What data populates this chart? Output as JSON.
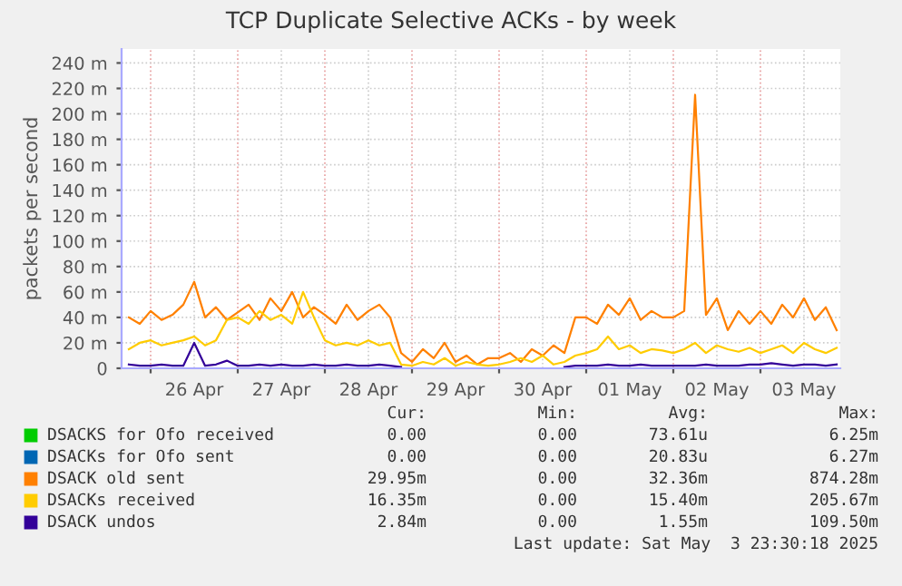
{
  "chart_data": {
    "type": "line",
    "title": "TCP Duplicate Selective ACKs - by week",
    "ylabel": "packets per second",
    "x": [
      "2025-04-25T18:00",
      "2025-04-25T21:00",
      "2025-04-26T00:00",
      "2025-04-26T03:00",
      "2025-04-26T06:00",
      "2025-04-26T09:00",
      "2025-04-26T12:00",
      "2025-04-26T15:00",
      "2025-04-26T18:00",
      "2025-04-26T21:00",
      "2025-04-27T00:00",
      "2025-04-27T03:00",
      "2025-04-27T06:00",
      "2025-04-27T09:00",
      "2025-04-27T12:00",
      "2025-04-27T15:00",
      "2025-04-27T18:00",
      "2025-04-27T21:00",
      "2025-04-28T00:00",
      "2025-04-28T03:00",
      "2025-04-28T06:00",
      "2025-04-28T09:00",
      "2025-04-28T12:00",
      "2025-04-28T15:00",
      "2025-04-28T18:00",
      "2025-04-28T21:00",
      "2025-04-29T00:00",
      "2025-04-29T03:00",
      "2025-04-29T06:00",
      "2025-04-29T09:00",
      "2025-04-29T12:00",
      "2025-04-29T15:00",
      "2025-04-29T18:00",
      "2025-04-29T21:00",
      "2025-04-30T00:00",
      "2025-04-30T03:00",
      "2025-04-30T06:00",
      "2025-04-30T09:00",
      "2025-04-30T12:00",
      "2025-04-30T15:00",
      "2025-04-30T18:00",
      "2025-04-30T21:00",
      "2025-05-01T00:00",
      "2025-05-01T03:00",
      "2025-05-01T06:00",
      "2025-05-01T09:00",
      "2025-05-01T12:00",
      "2025-05-01T15:00",
      "2025-05-01T18:00",
      "2025-05-01T21:00",
      "2025-05-02T00:00",
      "2025-05-02T03:00",
      "2025-05-02T06:00",
      "2025-05-02T09:00",
      "2025-05-02T12:00",
      "2025-05-02T15:00",
      "2025-05-02T18:00",
      "2025-05-02T21:00",
      "2025-05-03T00:00",
      "2025-05-03T03:00",
      "2025-05-03T06:00",
      "2025-05-03T09:00",
      "2025-05-03T12:00",
      "2025-05-03T15:00",
      "2025-05-03T18:00",
      "2025-05-03T21:00"
    ],
    "series": [
      {
        "name": "DSACKS for Ofo received",
        "color": "#00cc00",
        "values": [
          null,
          null,
          null,
          null,
          null,
          null,
          null,
          null,
          null,
          null,
          null,
          null,
          null,
          null,
          null,
          null,
          null,
          null,
          null,
          null,
          null,
          null,
          null,
          null,
          null,
          null,
          null,
          null,
          null,
          null,
          null,
          null,
          null,
          null,
          null,
          null,
          null,
          null,
          null,
          null,
          null,
          null,
          null,
          null,
          null,
          null,
          null,
          null,
          null,
          null,
          null,
          null,
          null,
          null,
          null,
          null,
          null,
          null,
          null,
          null,
          null,
          null,
          null,
          null,
          null,
          null
        ]
      },
      {
        "name": "DSACKs for Ofo sent",
        "color": "#0066b3",
        "values": [
          null,
          null,
          null,
          null,
          null,
          null,
          null,
          null,
          null,
          null,
          null,
          null,
          null,
          null,
          null,
          null,
          null,
          null,
          null,
          null,
          null,
          null,
          null,
          null,
          null,
          null,
          null,
          null,
          null,
          null,
          null,
          null,
          null,
          null,
          null,
          null,
          null,
          null,
          null,
          null,
          null,
          null,
          null,
          null,
          null,
          null,
          null,
          null,
          null,
          null,
          null,
          null,
          null,
          null,
          null,
          null,
          null,
          null,
          null,
          null,
          null,
          null,
          null,
          null,
          null,
          null
        ]
      },
      {
        "name": "DSACK old sent",
        "color": "#ff8000",
        "values": [
          40,
          35,
          45,
          38,
          42,
          50,
          68,
          40,
          48,
          38,
          44,
          50,
          38,
          55,
          45,
          60,
          40,
          48,
          42,
          35,
          50,
          38,
          45,
          50,
          40,
          12,
          5,
          15,
          8,
          20,
          5,
          10,
          3,
          8,
          8,
          12,
          5,
          15,
          10,
          18,
          12,
          40,
          40,
          35,
          50,
          42,
          55,
          38,
          45,
          40,
          40,
          45,
          215,
          42,
          55,
          30,
          45,
          35,
          45,
          35,
          50,
          40,
          55,
          38,
          48,
          30
        ]
      },
      {
        "name": "DSACKs received",
        "color": "#ffcc00",
        "values": [
          15,
          20,
          22,
          18,
          20,
          22,
          25,
          18,
          22,
          38,
          40,
          35,
          45,
          38,
          42,
          35,
          60,
          40,
          22,
          18,
          20,
          18,
          22,
          18,
          20,
          3,
          2,
          5,
          3,
          8,
          2,
          5,
          3,
          2,
          3,
          5,
          8,
          5,
          10,
          3,
          5,
          10,
          12,
          15,
          25,
          15,
          18,
          12,
          15,
          14,
          12,
          15,
          20,
          12,
          18,
          15,
          13,
          16,
          12,
          15,
          18,
          12,
          20,
          15,
          12,
          16
        ]
      },
      {
        "name": "DSACK undos",
        "color": "#330099",
        "values": [
          3,
          2,
          2,
          3,
          2,
          2,
          20,
          2,
          3,
          6,
          2,
          2,
          3,
          2,
          3,
          2,
          2,
          3,
          2,
          2,
          3,
          2,
          2,
          3,
          2,
          1,
          null,
          null,
          null,
          null,
          null,
          null,
          null,
          null,
          null,
          null,
          null,
          null,
          null,
          null,
          1,
          2,
          2,
          2,
          3,
          2,
          2,
          3,
          2,
          2,
          2,
          2,
          2,
          3,
          2,
          2,
          2,
          3,
          3,
          4,
          3,
          2,
          3,
          3,
          2,
          3
        ]
      }
    ],
    "xlim": [
      "2025-04-25T16:00",
      "2025-05-03T22:00"
    ],
    "xticks": [
      {
        "value": "2025-04-26T00:00",
        "label": null
      },
      {
        "value": "2025-04-26T12:00",
        "label": "26 Apr"
      },
      {
        "value": "2025-04-27T00:00",
        "label": null
      },
      {
        "value": "2025-04-27T12:00",
        "label": "27 Apr"
      },
      {
        "value": "2025-04-28T00:00",
        "label": null
      },
      {
        "value": "2025-04-28T12:00",
        "label": "28 Apr"
      },
      {
        "value": "2025-04-29T00:00",
        "label": null
      },
      {
        "value": "2025-04-29T12:00",
        "label": "29 Apr"
      },
      {
        "value": "2025-04-30T00:00",
        "label": null
      },
      {
        "value": "2025-04-30T12:00",
        "label": "30 Apr"
      },
      {
        "value": "2025-05-01T00:00",
        "label": null
      },
      {
        "value": "2025-05-01T12:00",
        "label": "01 May"
      },
      {
        "value": "2025-05-02T00:00",
        "label": null
      },
      {
        "value": "2025-05-02T12:00",
        "label": "02 May"
      },
      {
        "value": "2025-05-03T00:00",
        "label": null
      },
      {
        "value": "2025-05-03T12:00",
        "label": "03 May"
      }
    ],
    "ylim": [
      0,
      251
    ],
    "yticks": [
      0,
      {
        "value": 20,
        "label": "20 m"
      },
      {
        "value": 40,
        "label": "40 m"
      },
      {
        "value": 60,
        "label": "60 m"
      },
      {
        "value": 80,
        "label": "80 m"
      },
      {
        "value": 100,
        "label": "100 m"
      },
      {
        "value": 120,
        "label": "120 m"
      },
      {
        "value": 140,
        "label": "140 m"
      },
      {
        "value": 160,
        "label": "160 m"
      },
      {
        "value": 180,
        "label": "180 m"
      },
      {
        "value": 200,
        "label": "200 m"
      },
      {
        "value": 220,
        "label": "220 m"
      },
      {
        "value": 240,
        "label": "240 m"
      }
    ],
    "grid": true,
    "legend": "bottom",
    "line_style": "solid",
    "marker": "none",
    "annotations": [
      "Cur:",
      "Min:",
      "Avg:",
      "Max:",
      "0.00",
      "0.00",
      "73.61u",
      "6.25m",
      "0.00",
      "0.00",
      "20.83u",
      "6.27m",
      "29.95m",
      "0.00",
      "32.36m",
      "874.28m",
      "16.35m",
      "0.00",
      "15.40m",
      "205.67m",
      "2.84m",
      "0.00",
      "1.55m",
      "109.50m",
      "Last update: Sat May  3 23:30:18 2025"
    ]
  }
}
